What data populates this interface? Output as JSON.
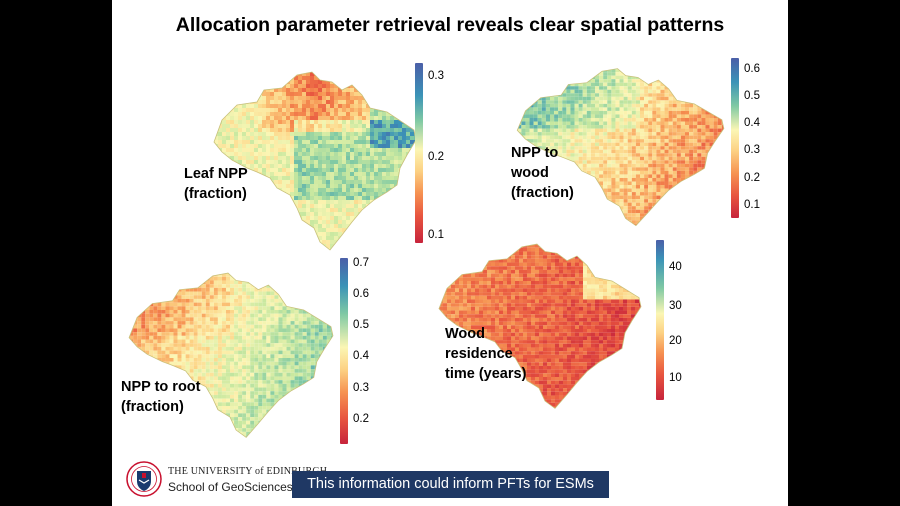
{
  "title": "Allocation parameter retrieval reveals clear spatial patterns",
  "panels": [
    {
      "label": [
        "Leaf NPP",
        "(fraction)"
      ],
      "colorbar_ticks": [
        "0.3",
        "0.2",
        "0.1"
      ]
    },
    {
      "label": [
        "NPP to",
        "wood",
        "(fraction)"
      ],
      "colorbar_ticks": [
        "0.6",
        "0.5",
        "0.4",
        "0.3",
        "0.2",
        "0.1"
      ]
    },
    {
      "label": [
        "NPP to root",
        "(fraction)"
      ],
      "colorbar_ticks": [
        "0.7",
        "0.6",
        "0.5",
        "0.4",
        "0.3",
        "0.2"
      ]
    },
    {
      "label": [
        "Wood",
        "residence",
        "time (years)"
      ],
      "colorbar_ticks": [
        "40",
        "30",
        "20",
        "10"
      ]
    }
  ],
  "footer": {
    "university": "THE UNIVERSITY of EDINBURGH",
    "school": "School of GeoSciences",
    "banner": "This information could inform PFTs for ESMs"
  },
  "colors": {
    "banner_bg": "#1f3864",
    "colormap": [
      "#c7243c",
      "#e8553f",
      "#f69352",
      "#fcd183",
      "#fbf6b4",
      "#c8e8a0",
      "#7fc9a4",
      "#3b93b7",
      "#4b5fa8"
    ]
  }
}
